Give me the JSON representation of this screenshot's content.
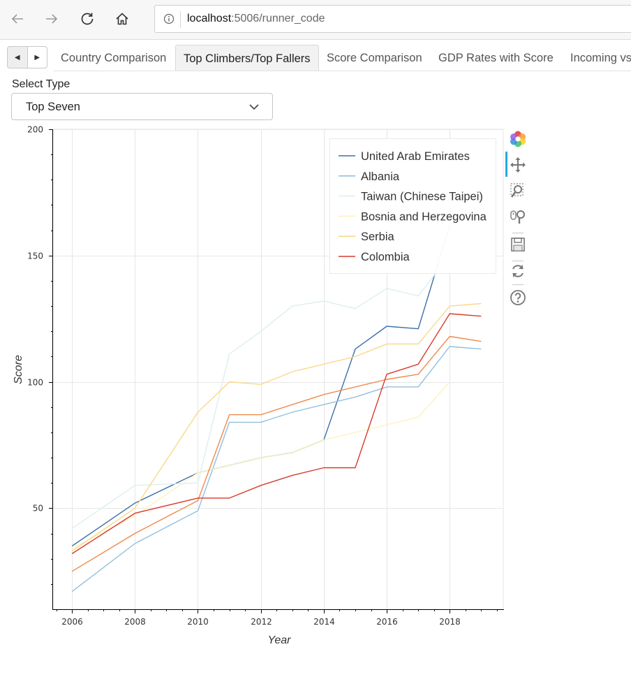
{
  "browser": {
    "url_host": "localhost",
    "url_rest": ":5006/runner_code",
    "icons": [
      "back-icon",
      "forward-icon",
      "reload-icon",
      "home-icon",
      "info-icon"
    ]
  },
  "tabs": [
    {
      "label": "Country Comparison",
      "active": false
    },
    {
      "label": "Top Climbers/Top Fallers",
      "active": true
    },
    {
      "label": "Score Comparison",
      "active": false
    },
    {
      "label": "GDP Rates with Score",
      "active": false
    },
    {
      "label": "Incoming vs",
      "active": false
    }
  ],
  "select": {
    "label": "Select Type",
    "value": "Top Seven"
  },
  "toolbar": {
    "icons": [
      "bokeh-logo-icon",
      "pan-icon",
      "box-zoom-icon",
      "wheel-zoom-icon",
      "save-icon",
      "reset-icon",
      "help-icon"
    ]
  },
  "chart_data": {
    "type": "line",
    "xlabel": "Year",
    "ylabel": "Score",
    "xlim": [
      2005.4,
      2019.7
    ],
    "ylim": [
      10,
      200
    ],
    "x_ticks": [
      "2006",
      "2008",
      "2010",
      "2012",
      "2014",
      "2016",
      "2018"
    ],
    "y_ticks": [
      "50",
      "100",
      "150",
      "200"
    ],
    "grid": true,
    "legend_position": "top-right",
    "x": [
      2006,
      2008,
      2010,
      2011,
      2012,
      2013,
      2014,
      2015,
      2016,
      2017,
      2018,
      2019
    ],
    "series": [
      {
        "name": "United Arab Emirates",
        "color": "#3b6faa",
        "legend": true,
        "values": [
          35,
          52,
          64,
          67,
          70,
          72,
          77,
          113,
          122,
          121,
          162,
          null
        ]
      },
      {
        "name": "Albania",
        "color": "#93bfdc",
        "legend": true,
        "values": [
          17,
          36,
          49,
          84,
          84,
          88,
          91,
          94,
          98,
          98,
          114,
          113
        ]
      },
      {
        "name": "Taiwan (Chinese Taipei)",
        "color": "#dcefee",
        "legend": true,
        "values": [
          42,
          59,
          60,
          111,
          120,
          130,
          132,
          129,
          137,
          134,
          150,
          null
        ]
      },
      {
        "name": "Bosnia and Herzegovina",
        "color": "#fbf2c0",
        "legend": true,
        "values": [
          34,
          47,
          64,
          67,
          70,
          72,
          77,
          80,
          83,
          86,
          100,
          null
        ]
      },
      {
        "name": "Serbia",
        "color": "#f9d98a",
        "legend": true,
        "values": [
          33,
          50,
          88,
          100,
          99,
          104,
          107,
          110,
          115,
          115,
          130,
          131
        ]
      },
      {
        "name": "",
        "color": "#f08a4b",
        "legend": false,
        "values": [
          25,
          40,
          53,
          87,
          87,
          91,
          95,
          98,
          101,
          103,
          118,
          116
        ]
      },
      {
        "name": "Colombia",
        "color": "#d93a2b",
        "legend": true,
        "values": [
          32,
          48,
          54,
          54,
          59,
          63,
          66,
          66,
          103,
          107,
          127,
          126
        ]
      }
    ]
  }
}
